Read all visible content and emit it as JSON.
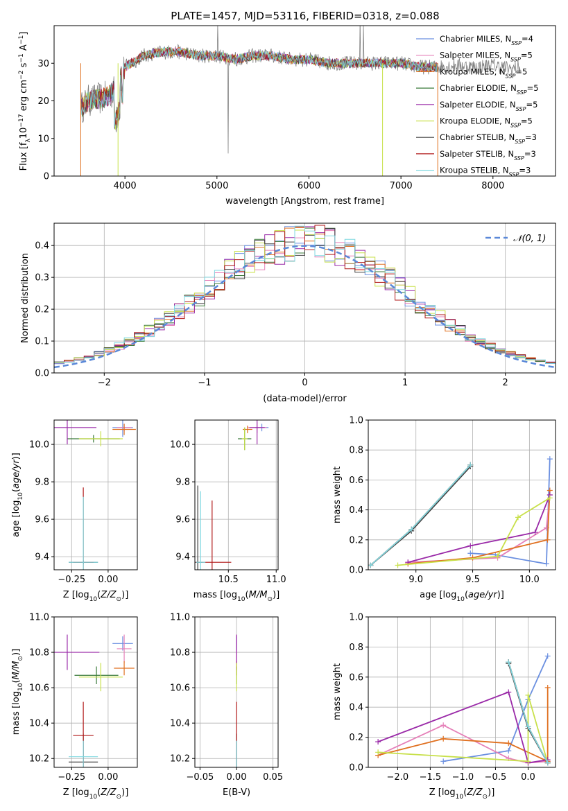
{
  "figure": {
    "title": "PLATE=1457, MJD=53116, FIBERID=0318, z=0.088"
  },
  "chart_data": [
    {
      "id": "spectrum",
      "type": "line",
      "xlabel": "wavelength [Angstrom, rest frame]",
      "ylabel": "Flux [f_λ10^-17 erg cm^-2 s^-1 A^-1]",
      "xlim": [
        3230,
        8680
      ],
      "ylim": [
        0,
        40
      ],
      "xticks": [
        4000,
        5000,
        6000,
        7000,
        8000
      ],
      "yticks": [
        0,
        10,
        20,
        30
      ],
      "grid": false,
      "legend_position": "top-right",
      "series": [
        {
          "name": "Chabrier MILES, N_SSP=4",
          "color": "#6a8fe0"
        },
        {
          "name": "Salpeter MILES, N_SSP=5",
          "color": "#e57fb8"
        },
        {
          "name": "Kroupa MILES, N_SSP=5",
          "color": "#e07020"
        },
        {
          "name": "Chabrier ELODIE, N_SSP=5",
          "color": "#3a7a3a"
        },
        {
          "name": "Salpeter ELODIE, N_SSP=5",
          "color": "#9a2aa8"
        },
        {
          "name": "Kroupa ELODIE, N_SSP=5",
          "color": "#c8e04a"
        },
        {
          "name": "Chabrier STELIB, N_SSP=3",
          "color": "#404040"
        },
        {
          "name": "Salpeter STELIB, N_SSP=3",
          "color": "#b01818"
        },
        {
          "name": "Kroupa STELIB, N_SSP=3",
          "color": "#7fd8e0"
        }
      ],
      "data_color": "#808080",
      "continuum": {
        "x": [
          3520,
          3600,
          3800,
          3900,
          4000,
          4200,
          4400,
          4600,
          4800,
          5000,
          5200,
          5400,
          5600,
          5800,
          6000,
          6200,
          6400,
          6600,
          6800,
          7000,
          7200,
          7400
        ],
        "y": [
          18,
          20,
          21,
          23,
          29,
          32,
          33,
          33,
          32,
          32,
          31,
          32,
          32,
          31,
          31,
          30,
          30,
          30,
          30,
          30,
          29,
          29
        ]
      },
      "data_continuum": {
        "x": [
          7400,
          7600,
          7800,
          8000,
          8200,
          8300
        ],
        "y": [
          29,
          29.5,
          29,
          29.5,
          28.5,
          29
        ]
      }
    },
    {
      "id": "residuals",
      "type": "histogram",
      "xlabel": "(data-model)/error",
      "ylabel": "Normed distribution",
      "xlim": [
        -2.5,
        2.5
      ],
      "ylim": [
        0,
        0.47
      ],
      "xticks": [
        -2,
        -1,
        0,
        1,
        2
      ],
      "yticks": [
        0.0,
        0.1,
        0.2,
        0.3,
        0.4
      ],
      "grid": true,
      "legend_position": "top-right",
      "reference": {
        "name": "𝒩(0, 1)",
        "color": "#5a88d8"
      },
      "bin_width": 0.1
    },
    {
      "id": "age-vs-Z",
      "type": "scatter",
      "xlabel": "Z [log10(Z/Z⊙)]",
      "ylabel": "age [log10(age/yr)]",
      "xlim": [
        -0.37,
        0.2
      ],
      "ylim": [
        9.33,
        10.13
      ],
      "xticks": [
        -0.25,
        0.0
      ],
      "yticks": [
        9.4,
        9.6,
        9.8,
        10.0
      ],
      "grid": true,
      "points": [
        {
          "x": 0.1,
          "y": 10.09,
          "xerr": 0.07,
          "yerr": 0.05,
          "color": "#6a8fe0"
        },
        {
          "x": 0.11,
          "y": 10.09,
          "xerr": 0.05,
          "yerr": 0.02,
          "color": "#e57fb8"
        },
        {
          "x": 0.11,
          "y": 10.08,
          "xerr": 0.08,
          "yerr": 0.03,
          "color": "#e07020"
        },
        {
          "x": -0.1,
          "y": 10.03,
          "xerr": 0.18,
          "yerr": 0.02,
          "color": "#3a7a3a"
        },
        {
          "x": -0.28,
          "y": 10.09,
          "xerr": 0.2,
          "yerr": 0.09,
          "color": "#9a2aa8"
        },
        {
          "x": -0.05,
          "y": 10.03,
          "xerr": 0.15,
          "yerr": 0.04,
          "color": "#c8e04a"
        },
        {
          "x": -0.17,
          "y": 9.37,
          "xerr": 0.1,
          "yerr": 0.01,
          "color": "#404040"
        },
        {
          "x": -0.17,
          "y": 9.37,
          "xerr": 0.07,
          "yerr": 0.4,
          "color": "#b01818"
        },
        {
          "x": -0.17,
          "y": 9.37,
          "xerr": 0.1,
          "yerr": 0.35,
          "color": "#7fd8e0"
        }
      ]
    },
    {
      "id": "age-vs-mass",
      "type": "scatter",
      "xlabel": "mass [log10(M/M⊙)]",
      "ylabel": "",
      "xlim": [
        10.15,
        11.02
      ],
      "ylim": [
        9.33,
        10.13
      ],
      "xticks": [
        10.5,
        11.0
      ],
      "yticks": [
        9.4,
        9.6,
        9.8,
        10.0
      ],
      "grid": true,
      "points": [
        {
          "x": 10.85,
          "y": 10.09,
          "xerr": 0.07,
          "yerr": 0.02,
          "color": "#6a8fe0"
        },
        {
          "x": 10.8,
          "y": 10.09,
          "xerr": 0.1,
          "yerr": 0.03,
          "color": "#e57fb8"
        },
        {
          "x": 10.7,
          "y": 10.08,
          "xerr": 0.05,
          "yerr": 0.02,
          "color": "#e07020"
        },
        {
          "x": 10.67,
          "y": 10.03,
          "xerr": 0.07,
          "yerr": 0.06,
          "color": "#3a7a3a"
        },
        {
          "x": 10.8,
          "y": 10.09,
          "xerr": 0.08,
          "yerr": 0.09,
          "color": "#9a2aa8"
        },
        {
          "x": 10.67,
          "y": 10.03,
          "xerr": 0.03,
          "yerr": 0.06,
          "color": "#c8e04a"
        },
        {
          "x": 10.18,
          "y": 9.37,
          "xerr": 0.05,
          "yerr": 0.41,
          "color": "#404040"
        },
        {
          "x": 10.33,
          "y": 9.37,
          "xerr": 0.2,
          "yerr": 0.33,
          "color": "#b01818"
        },
        {
          "x": 10.21,
          "y": 9.37,
          "xerr": 0.05,
          "yerr": 0.38,
          "color": "#7fd8e0"
        }
      ]
    },
    {
      "id": "weight-vs-age",
      "type": "line",
      "xlabel": "age [log10(age/yr)]",
      "ylabel": "mass weight",
      "xlim": [
        8.58,
        10.23
      ],
      "ylim": [
        0,
        1
      ],
      "xticks": [
        9.0,
        9.5,
        10.0
      ],
      "yticks": [
        0.0,
        0.2,
        0.4,
        0.6,
        0.8,
        1.0
      ],
      "grid": true,
      "series": [
        {
          "color": "#6a8fe0",
          "x": [
            9.48,
            9.7,
            10.15,
            10.18
          ],
          "y": [
            0.11,
            0.1,
            0.04,
            0.74
          ]
        },
        {
          "color": "#e57fb8",
          "x": [
            8.93,
            9.72,
            10.15,
            10.18
          ],
          "y": [
            0.05,
            0.08,
            0.28,
            0.5
          ]
        },
        {
          "color": "#e07020",
          "x": [
            8.93,
            9.5,
            10.16,
            10.18
          ],
          "y": [
            0.04,
            0.08,
            0.2,
            0.53
          ]
        },
        {
          "color": "#3a7a3a",
          "x": [
            8.6,
            8.96,
            9.48
          ],
          "y": [
            0.03,
            0.27,
            0.7
          ]
        },
        {
          "color": "#9a2aa8",
          "x": [
            8.93,
            9.48,
            10.05,
            10.18
          ],
          "y": [
            0.05,
            0.16,
            0.25,
            0.5
          ]
        },
        {
          "color": "#c8e04a",
          "x": [
            8.84,
            9.72,
            9.9,
            10.18
          ],
          "y": [
            0.03,
            0.09,
            0.35,
            0.48
          ]
        },
        {
          "color": "#404040",
          "x": [
            8.6,
            8.96,
            9.48
          ],
          "y": [
            0.03,
            0.26,
            0.69
          ]
        },
        {
          "color": "#b01818",
          "x": [
            8.6,
            8.96,
            9.48
          ],
          "y": [
            0.03,
            0.27,
            0.7
          ]
        },
        {
          "color": "#7fd8e0",
          "x": [
            8.6,
            8.96,
            9.48
          ],
          "y": [
            0.03,
            0.27,
            0.7
          ]
        }
      ]
    },
    {
      "id": "mass-vs-Z",
      "type": "scatter",
      "xlabel": "Z [log10(Z/Z⊙)]",
      "ylabel": "mass [log10(M/M⊙)]",
      "xlim": [
        -0.37,
        0.2
      ],
      "ylim": [
        10.15,
        11.0
      ],
      "xticks": [
        -0.25,
        0.0
      ],
      "yticks": [
        10.2,
        10.4,
        10.6,
        10.8,
        11.0
      ],
      "grid": true,
      "points": [
        {
          "x": 0.1,
          "y": 10.85,
          "xerr": 0.07,
          "yerr": 0.04,
          "color": "#6a8fe0"
        },
        {
          "x": 0.11,
          "y": 10.82,
          "xerr": 0.05,
          "yerr": 0.08,
          "color": "#e57fb8"
        },
        {
          "x": 0.11,
          "y": 10.71,
          "xerr": 0.07,
          "yerr": 0.04,
          "color": "#e07020"
        },
        {
          "x": -0.08,
          "y": 10.67,
          "xerr": 0.15,
          "yerr": 0.05,
          "color": "#3a7a3a"
        },
        {
          "x": -0.28,
          "y": 10.8,
          "xerr": 0.22,
          "yerr": 0.1,
          "color": "#9a2aa8"
        },
        {
          "x": -0.05,
          "y": 10.66,
          "xerr": 0.15,
          "yerr": 0.08,
          "color": "#c8e04a"
        },
        {
          "x": -0.17,
          "y": 10.18,
          "xerr": 0.1,
          "yerr": 0.16,
          "color": "#404040"
        },
        {
          "x": -0.17,
          "y": 10.33,
          "xerr": 0.07,
          "yerr": 0.19,
          "color": "#b01818"
        },
        {
          "x": -0.17,
          "y": 10.21,
          "xerr": 0.1,
          "yerr": 0.09,
          "color": "#7fd8e0"
        }
      ]
    },
    {
      "id": "mass-vs-ebv",
      "type": "scatter",
      "xlabel": "E(B-V)",
      "ylabel": "",
      "xlim": [
        -0.057,
        0.057
      ],
      "ylim": [
        10.15,
        11.0
      ],
      "xticks": [
        -0.05,
        0.0,
        0.05
      ],
      "yticks": [
        10.2,
        10.4,
        10.6,
        10.8,
        11.0
      ],
      "grid": true,
      "points": [
        {
          "x": 0.0,
          "y": 10.85,
          "xerr": 0.0,
          "yerr": 0.04,
          "color": "#6a8fe0"
        },
        {
          "x": 0.0,
          "y": 10.82,
          "xerr": 0.0,
          "yerr": 0.08,
          "color": "#e57fb8"
        },
        {
          "x": 0.0,
          "y": 10.71,
          "xerr": 0.0,
          "yerr": 0.04,
          "color": "#e07020"
        },
        {
          "x": 0.0,
          "y": 10.67,
          "xerr": 0.0,
          "yerr": 0.05,
          "color": "#3a7a3a"
        },
        {
          "x": 0.0,
          "y": 10.8,
          "xerr": 0.0,
          "yerr": 0.1,
          "color": "#9a2aa8"
        },
        {
          "x": 0.0,
          "y": 10.66,
          "xerr": 0.0,
          "yerr": 0.08,
          "color": "#c8e04a"
        },
        {
          "x": 0.0,
          "y": 10.18,
          "xerr": 0.0,
          "yerr": 0.16,
          "color": "#404040"
        },
        {
          "x": 0.0,
          "y": 10.33,
          "xerr": 0.0,
          "yerr": 0.19,
          "color": "#b01818"
        },
        {
          "x": 0.0,
          "y": 10.21,
          "xerr": 0.0,
          "yerr": 0.09,
          "color": "#7fd8e0"
        }
      ]
    },
    {
      "id": "weight-vs-Z",
      "type": "line",
      "xlabel": "Z [log10(Z/Z⊙)]",
      "ylabel": "mass weight",
      "xlim": [
        -2.45,
        0.42
      ],
      "ylim": [
        0,
        1
      ],
      "xticks": [
        -2.0,
        -1.5,
        -1.0,
        -0.5,
        0.0
      ],
      "yticks": [
        0.0,
        0.2,
        0.4,
        0.6,
        0.8,
        1.0
      ],
      "grid": true,
      "series": [
        {
          "color": "#6a8fe0",
          "x": [
            -1.3,
            -0.3,
            0.0,
            0.3
          ],
          "y": [
            0.04,
            0.11,
            0.45,
            0.74
          ]
        },
        {
          "color": "#e57fb8",
          "x": [
            -2.3,
            -1.3,
            -0.3,
            0.0,
            0.3
          ],
          "y": [
            0.08,
            0.28,
            0.06,
            0.03,
            0.04
          ]
        },
        {
          "color": "#e07020",
          "x": [
            -2.3,
            -1.3,
            -0.3,
            0.3,
            0.3
          ],
          "y": [
            0.08,
            0.19,
            0.16,
            0.04,
            0.53
          ]
        },
        {
          "color": "#3a7a3a",
          "x": [
            -0.3,
            0.0,
            0.3
          ],
          "y": [
            0.7,
            0.27,
            0.03
          ]
        },
        {
          "color": "#9a2aa8",
          "x": [
            -2.3,
            -0.3,
            0.0,
            0.3
          ],
          "y": [
            0.17,
            0.5,
            0.03,
            0.05
          ]
        },
        {
          "color": "#c8e04a",
          "x": [
            -2.3,
            0.0,
            0.0,
            0.3
          ],
          "y": [
            0.1,
            0.04,
            0.48,
            0.03
          ]
        },
        {
          "color": "#404040",
          "x": [
            -0.3,
            0.0,
            0.3
          ],
          "y": [
            0.69,
            0.26,
            0.03
          ]
        },
        {
          "color": "#b01818",
          "x": [
            -0.3,
            0.0,
            0.3
          ],
          "y": [
            0.7,
            0.27,
            0.03
          ]
        },
        {
          "color": "#7fd8e0",
          "x": [
            -0.3,
            0.0,
            0.3
          ],
          "y": [
            0.7,
            0.27,
            0.03
          ]
        }
      ]
    }
  ]
}
